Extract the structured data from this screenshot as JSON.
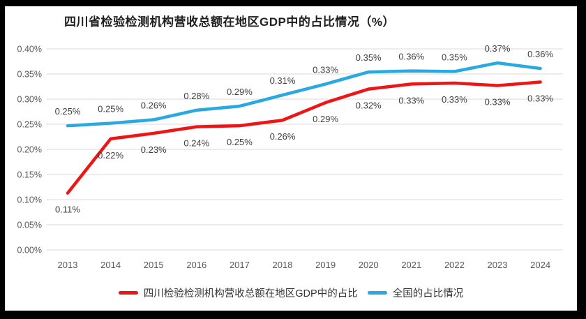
{
  "frame": {
    "color": "#000000",
    "inner_background": "#ffffff"
  },
  "chart_data": {
    "type": "line",
    "title": "四川省检验检测机构营收总额在地区GDP中的占比情况（%）",
    "categories": [
      "2013",
      "2014",
      "2015",
      "2016",
      "2017",
      "2018",
      "2019",
      "2020",
      "2021",
      "2022",
      "2023",
      "2024"
    ],
    "series": [
      {
        "name": "四川检验检测机构营收总额在地区GDP中的占比",
        "color": "#ed1515",
        "values_pct": [
          0.11,
          0.22,
          0.23,
          0.24,
          0.25,
          0.26,
          0.29,
          0.32,
          0.33,
          0.33,
          0.33,
          0.33
        ],
        "labels": [
          "0.11%",
          "0.22%",
          "0.23%",
          "0.24%",
          "0.25%",
          "0.26%",
          "0.29%",
          "0.32%",
          "0.33%",
          "0.33%",
          "0.33%",
          "0.33%"
        ],
        "plot_values_est": [
          0.113,
          0.221,
          0.232,
          0.245,
          0.247,
          0.258,
          0.293,
          0.32,
          0.33,
          0.332,
          0.327,
          0.334
        ],
        "label_position": "below"
      },
      {
        "name": "全国的占比情况",
        "color": "#2aa8e0",
        "values_pct": [
          0.25,
          0.25,
          0.26,
          0.28,
          0.29,
          0.31,
          0.33,
          0.35,
          0.36,
          0.35,
          0.37,
          0.36
        ],
        "labels": [
          "0.25%",
          "0.25%",
          "0.26%",
          "0.28%",
          "0.29%",
          "0.31%",
          "0.33%",
          "0.35%",
          "0.36%",
          "0.35%",
          "0.37%",
          "0.36%"
        ],
        "plot_values_est": [
          0.247,
          0.252,
          0.259,
          0.278,
          0.286,
          0.308,
          0.33,
          0.354,
          0.356,
          0.355,
          0.372,
          0.361
        ],
        "label_position": "above"
      }
    ],
    "y_axis": {
      "min": 0.0,
      "max": 0.4,
      "step": 0.05,
      "tick_labels": [
        "0.00%",
        "0.05%",
        "0.10%",
        "0.15%",
        "0.20%",
        "0.25%",
        "0.30%",
        "0.35%",
        "0.40%"
      ],
      "ylim": [
        0.0,
        0.4
      ]
    },
    "grid": true,
    "legend_position": "bottom",
    "colors": {
      "gridline": "#d9d9d9",
      "axis_text": "#595959",
      "data_label": "#404040",
      "title_text": "#1f1f1f"
    }
  }
}
